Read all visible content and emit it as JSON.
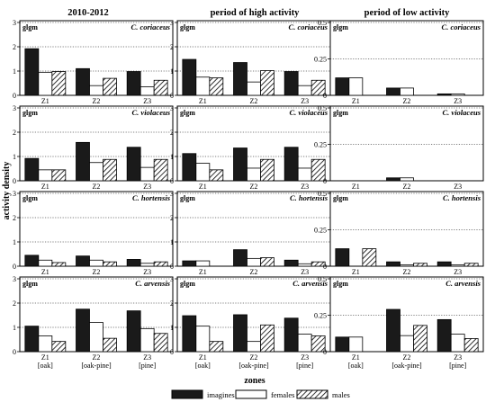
{
  "columns": [
    "2010-2012",
    "period of high activity",
    "period of low activity"
  ],
  "rows": [
    "C. coriaceus",
    "C. violaceus",
    "C. hortensis",
    "C. arvensis"
  ],
  "unit_label": "glgm",
  "y_axis_label": "activity density",
  "x_axis_label": "zones",
  "zones": [
    "Z1",
    "Z2",
    "Z3"
  ],
  "habitats": [
    "[oak]",
    "[oak-pine]",
    "[pine]"
  ],
  "legend": [
    "imagines",
    "females",
    "males"
  ],
  "colors": {
    "imagines": "#1a1a1a",
    "females": "#ffffff",
    "males": "hatched"
  },
  "chart_data": {
    "type": "bar",
    "layout": "grid 4 rows x 3 columns",
    "series_names": [
      "imagines",
      "females",
      "males"
    ],
    "categories": [
      "Z1",
      "Z2",
      "Z3"
    ],
    "panels": [
      {
        "row": "C. coriaceus",
        "column": "2010-2012",
        "ylim": [
          0,
          3
        ],
        "yticks": [
          0,
          1,
          2,
          3
        ],
        "values": {
          "imagines": [
            1.92,
            1.1,
            0.98
          ],
          "females": [
            0.95,
            0.4,
            0.35
          ],
          "males": [
            0.98,
            0.7,
            0.62
          ]
        }
      },
      {
        "row": "C. coriaceus",
        "column": "period of high activity",
        "ylim": [
          0,
          3
        ],
        "yticks": [
          0,
          1,
          2,
          3
        ],
        "values": {
          "imagines": [
            1.48,
            1.35,
            0.98
          ],
          "females": [
            0.75,
            0.55,
            0.4
          ],
          "males": [
            0.72,
            1.02,
            0.62
          ]
        }
      },
      {
        "row": "C. coriaceus",
        "column": "period of low activity",
        "ylim": [
          0,
          0.5
        ],
        "yticks": [
          0,
          0.25,
          0.5
        ],
        "values": {
          "imagines": [
            0.12,
            0.05,
            0.01
          ],
          "females": [
            0.12,
            0.05,
            0.01
          ],
          "males": [
            0,
            0,
            0
          ]
        }
      },
      {
        "row": "C. violaceus",
        "column": "2010-2012",
        "ylim": [
          0,
          3
        ],
        "yticks": [
          0,
          1,
          2,
          3
        ],
        "values": {
          "imagines": [
            0.92,
            1.58,
            1.38
          ],
          "females": [
            0.45,
            0.75,
            0.55
          ],
          "males": [
            0.45,
            0.88,
            0.88
          ]
        }
      },
      {
        "row": "C. violaceus",
        "column": "period of high activity",
        "ylim": [
          0,
          3
        ],
        "yticks": [
          0,
          1,
          2,
          3
        ],
        "values": {
          "imagines": [
            1.12,
            1.35,
            1.38
          ],
          "females": [
            0.72,
            0.52,
            0.52
          ],
          "males": [
            0.45,
            0.88,
            0.88
          ]
        }
      },
      {
        "row": "C. violaceus",
        "column": "period of low activity",
        "ylim": [
          0,
          0.5
        ],
        "yticks": [
          0,
          0.25,
          0.5
        ],
        "values": {
          "imagines": [
            0,
            0.02,
            0
          ],
          "females": [
            0,
            0.02,
            0
          ],
          "males": [
            0,
            0,
            0
          ]
        }
      },
      {
        "row": "C. hortensis",
        "column": "2010-2012",
        "ylim": [
          0,
          3
        ],
        "yticks": [
          0,
          1,
          2,
          3
        ],
        "values": {
          "imagines": [
            0.45,
            0.42,
            0.28
          ],
          "females": [
            0.25,
            0.25,
            0.12
          ],
          "males": [
            0.15,
            0.18,
            0.18
          ]
        }
      },
      {
        "row": "C. hortensis",
        "column": "period of high activity",
        "ylim": [
          0,
          3
        ],
        "yticks": [
          0,
          1,
          2,
          3
        ],
        "values": {
          "imagines": [
            0.22,
            0.68,
            0.25
          ],
          "females": [
            0.22,
            0.32,
            0.1
          ],
          "males": [
            0,
            0.35,
            0.18
          ]
        }
      },
      {
        "row": "C. hortensis",
        "column": "period of low activity",
        "ylim": [
          0,
          0.5
        ],
        "yticks": [
          0,
          0.25,
          0.5
        ],
        "values": {
          "imagines": [
            0.12,
            0.03,
            0.03
          ],
          "females": [
            0,
            0.01,
            0.01
          ],
          "males": [
            0.12,
            0.02,
            0.02
          ]
        }
      },
      {
        "row": "C. arvensis",
        "column": "2010-2012",
        "ylim": [
          0,
          3
        ],
        "yticks": [
          0,
          1,
          2,
          3
        ],
        "values": {
          "imagines": [
            1.05,
            1.75,
            1.68
          ],
          "females": [
            0.65,
            1.2,
            0.95
          ],
          "males": [
            0.42,
            0.55,
            0.75
          ]
        }
      },
      {
        "row": "C. arvensis",
        "column": "period of high activity",
        "ylim": [
          0,
          3
        ],
        "yticks": [
          0,
          1,
          2,
          3
        ],
        "values": {
          "imagines": [
            1.48,
            1.52,
            1.38
          ],
          "females": [
            1.05,
            0.42,
            0.72
          ],
          "males": [
            0.42,
            1.1,
            0.65
          ]
        }
      },
      {
        "row": "C. arvensis",
        "column": "period of low activity",
        "ylim": [
          0,
          0.5
        ],
        "yticks": [
          0,
          0.25,
          0.5
        ],
        "values": {
          "imagines": [
            0.1,
            0.29,
            0.22
          ],
          "females": [
            0.1,
            0.11,
            0.12
          ],
          "males": [
            0,
            0.18,
            0.09
          ]
        }
      }
    ],
    "reference_lines": "dotted at y=1,2,3 (left panels) and y=0.25,0.5 (right panels)",
    "legend_position": "bottom-center",
    "grid": false
  }
}
